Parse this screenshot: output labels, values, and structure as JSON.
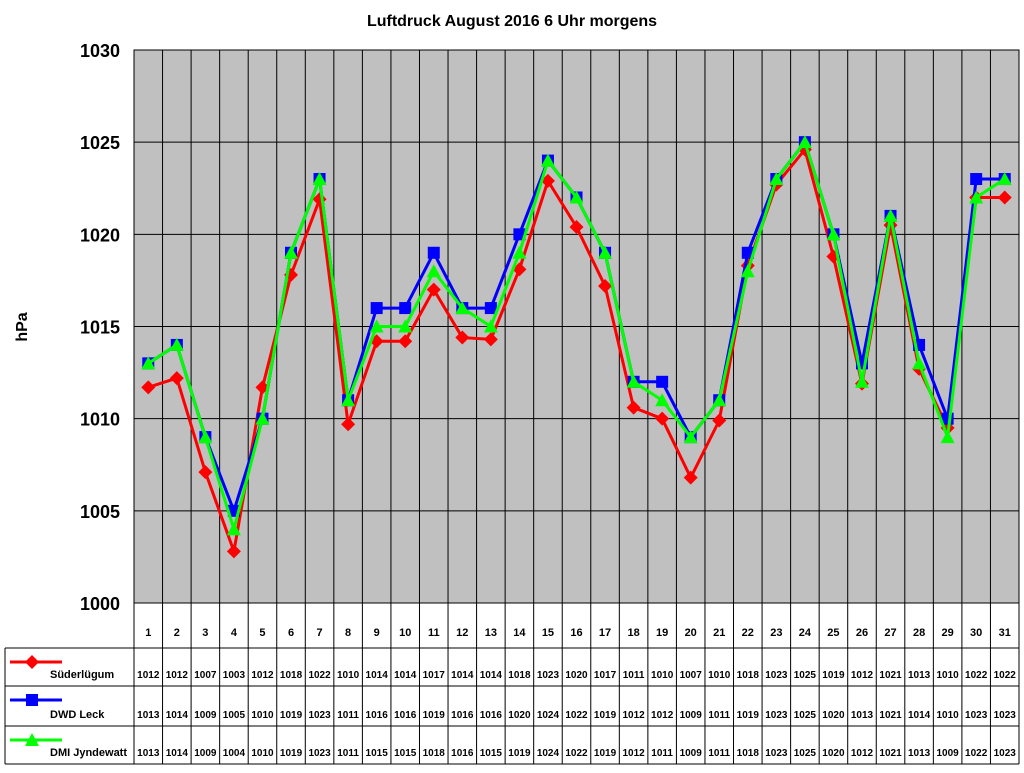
{
  "chart_data": {
    "type": "line",
    "title": "Luftdruck August 2016 6 Uhr morgens",
    "xlabel": "",
    "ylabel": "hPa",
    "ylim": [
      1000,
      1030
    ],
    "yticks": [
      1000,
      1005,
      1010,
      1015,
      1020,
      1025,
      1030
    ],
    "grid": true,
    "categories": [
      "1",
      "2",
      "3",
      "4",
      "5",
      "6",
      "7",
      "8",
      "9",
      "10",
      "11",
      "12",
      "13",
      "14",
      "15",
      "16",
      "17",
      "18",
      "19",
      "20",
      "21",
      "22",
      "23",
      "24",
      "25",
      "26",
      "27",
      "28",
      "29",
      "30",
      "31"
    ],
    "series": [
      {
        "name": "Süderlügum",
        "color": "#ff0000",
        "marker": "diamond",
        "values": [
          1011.7,
          1012.2,
          1007.1,
          1002.8,
          1011.7,
          1017.8,
          1021.9,
          1009.7,
          1014.2,
          1014.2,
          1017.0,
          1014.4,
          1014.3,
          1018.1,
          1022.9,
          1020.4,
          1017.2,
          1010.6,
          1010.0,
          1006.8,
          1009.9,
          1018.3,
          1022.7,
          1024.6,
          1018.8,
          1011.9,
          1020.5,
          1012.7,
          1009.5,
          1022.0,
          1022.0
        ],
        "table": [
          "1012",
          "1012",
          "1007",
          "1003",
          "1012",
          "1018",
          "1022",
          "1010",
          "1014",
          "1014",
          "1017",
          "1014",
          "1014",
          "1018",
          "1023",
          "1020",
          "1017",
          "1011",
          "1010",
          "1007",
          "1010",
          "1018",
          "1023",
          "1025",
          "1019",
          "1012",
          "1021",
          "1013",
          "1010",
          "1022",
          "1022"
        ]
      },
      {
        "name": "DWD Leck",
        "color": "#0000ff",
        "marker": "square",
        "values": [
          1013,
          1014,
          1009,
          1005,
          1010,
          1019,
          1023,
          1011,
          1016,
          1016,
          1019,
          1016,
          1016,
          1020,
          1024,
          1022,
          1019,
          1012,
          1012,
          1009,
          1011,
          1019,
          1023,
          1025,
          1020,
          1013,
          1021,
          1014,
          1010,
          1023,
          1023
        ],
        "table": [
          "1013",
          "1014",
          "1009",
          "1005",
          "1010",
          "1019",
          "1023",
          "1011",
          "1016",
          "1016",
          "1019",
          "1016",
          "1016",
          "1020",
          "1024",
          "1022",
          "1019",
          "1012",
          "1012",
          "1009",
          "1011",
          "1019",
          "1023",
          "1025",
          "1020",
          "1013",
          "1021",
          "1014",
          "1010",
          "1023",
          "1023"
        ]
      },
      {
        "name": "DMI Jyndewatt",
        "color": "#00ff00",
        "marker": "triangle",
        "values": [
          1013,
          1014,
          1009,
          1004,
          1010,
          1019,
          1023,
          1011,
          1015,
          1015,
          1018,
          1016,
          1015,
          1019,
          1024,
          1022,
          1019,
          1012,
          1011,
          1009,
          1011,
          1018,
          1023,
          1025,
          1020,
          1012,
          1021,
          1013,
          1009,
          1022,
          1023
        ],
        "table": [
          "1013",
          "1014",
          "1009",
          "1004",
          "1010",
          "1019",
          "1023",
          "1011",
          "1015",
          "1015",
          "1018",
          "1016",
          "1015",
          "1019",
          "1024",
          "1022",
          "1019",
          "1012",
          "1011",
          "1009",
          "1011",
          "1018",
          "1023",
          "1025",
          "1020",
          "1012",
          "1021",
          "1013",
          "1009",
          "1022",
          "1023"
        ]
      }
    ],
    "plot_background": "#c0c0c0"
  }
}
